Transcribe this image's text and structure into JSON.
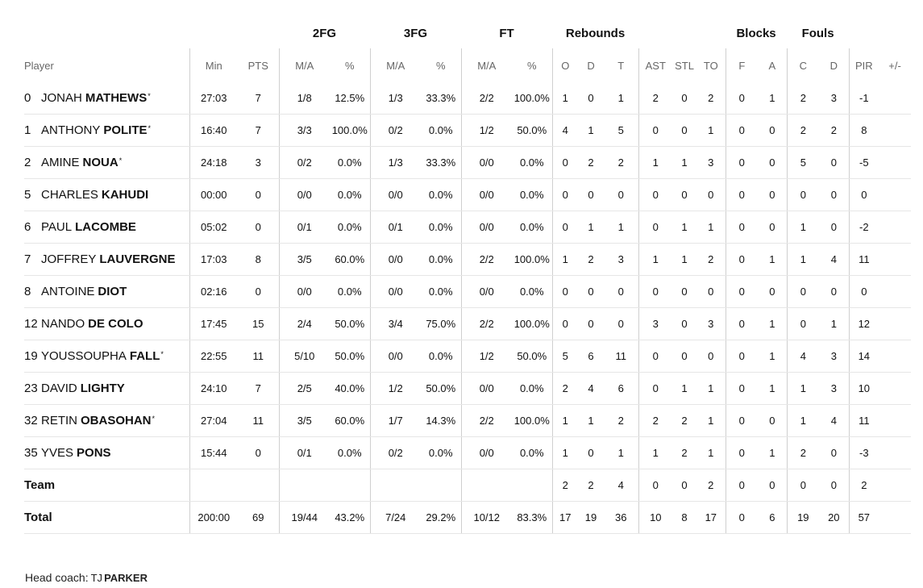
{
  "groups": {
    "fg2": "2FG",
    "fg3": "3FG",
    "ft": "FT",
    "reb": "Rebounds",
    "blk": "Blocks",
    "fouls": "Fouls"
  },
  "headers": {
    "player": "Player",
    "min": "Min",
    "pts": "PTS",
    "fg2_ma": "M/A",
    "fg2_pct": "%",
    "fg3_ma": "M/A",
    "fg3_pct": "%",
    "ft_ma": "M/A",
    "ft_pct": "%",
    "o": "O",
    "d": "D",
    "t": "T",
    "ast": "AST",
    "stl": "STL",
    "to": "TO",
    "f": "F",
    "a": "A",
    "c": "C",
    "fd": "D",
    "pir": "PIR",
    "pm": "+/-"
  },
  "players": [
    {
      "num": "0",
      "first": "JONAH",
      "last": "MATHEWS",
      "star": "*",
      "min": "27:03",
      "pts": "7",
      "fg2_ma": "1/8",
      "fg2_pct": "12.5%",
      "fg3_ma": "1/3",
      "fg3_pct": "33.3%",
      "ft_ma": "2/2",
      "ft_pct": "100.0%",
      "o": "1",
      "d": "0",
      "t": "1",
      "ast": "2",
      "stl": "0",
      "to": "2",
      "f": "0",
      "a": "1",
      "c": "2",
      "fd": "3",
      "pir": "-1"
    },
    {
      "num": "1",
      "first": "ANTHONY",
      "last": "POLITE",
      "star": "*",
      "min": "16:40",
      "pts": "7",
      "fg2_ma": "3/3",
      "fg2_pct": "100.0%",
      "fg3_ma": "0/2",
      "fg3_pct": "0.0%",
      "ft_ma": "1/2",
      "ft_pct": "50.0%",
      "o": "4",
      "d": "1",
      "t": "5",
      "ast": "0",
      "stl": "0",
      "to": "1",
      "f": "0",
      "a": "0",
      "c": "2",
      "fd": "2",
      "pir": "8"
    },
    {
      "num": "2",
      "first": "AMINE",
      "last": "NOUA",
      "star": "*",
      "min": "24:18",
      "pts": "3",
      "fg2_ma": "0/2",
      "fg2_pct": "0.0%",
      "fg3_ma": "1/3",
      "fg3_pct": "33.3%",
      "ft_ma": "0/0",
      "ft_pct": "0.0%",
      "o": "0",
      "d": "2",
      "t": "2",
      "ast": "1",
      "stl": "1",
      "to": "3",
      "f": "0",
      "a": "0",
      "c": "5",
      "fd": "0",
      "pir": "-5"
    },
    {
      "num": "5",
      "first": "CHARLES",
      "last": "KAHUDI",
      "star": "",
      "min": "00:00",
      "pts": "0",
      "fg2_ma": "0/0",
      "fg2_pct": "0.0%",
      "fg3_ma": "0/0",
      "fg3_pct": "0.0%",
      "ft_ma": "0/0",
      "ft_pct": "0.0%",
      "o": "0",
      "d": "0",
      "t": "0",
      "ast": "0",
      "stl": "0",
      "to": "0",
      "f": "0",
      "a": "0",
      "c": "0",
      "fd": "0",
      "pir": "0"
    },
    {
      "num": "6",
      "first": "PAUL",
      "last": "LACOMBE",
      "star": "",
      "min": "05:02",
      "pts": "0",
      "fg2_ma": "0/1",
      "fg2_pct": "0.0%",
      "fg3_ma": "0/1",
      "fg3_pct": "0.0%",
      "ft_ma": "0/0",
      "ft_pct": "0.0%",
      "o": "0",
      "d": "1",
      "t": "1",
      "ast": "0",
      "stl": "1",
      "to": "1",
      "f": "0",
      "a": "0",
      "c": "1",
      "fd": "0",
      "pir": "-2"
    },
    {
      "num": "7",
      "first": "JOFFREY",
      "last": "LAUVERGNE",
      "star": "",
      "min": "17:03",
      "pts": "8",
      "fg2_ma": "3/5",
      "fg2_pct": "60.0%",
      "fg3_ma": "0/0",
      "fg3_pct": "0.0%",
      "ft_ma": "2/2",
      "ft_pct": "100.0%",
      "o": "1",
      "d": "2",
      "t": "3",
      "ast": "1",
      "stl": "1",
      "to": "2",
      "f": "0",
      "a": "1",
      "c": "1",
      "fd": "4",
      "pir": "11"
    },
    {
      "num": "8",
      "first": "ANTOINE",
      "last": "DIOT",
      "star": "",
      "min": "02:16",
      "pts": "0",
      "fg2_ma": "0/0",
      "fg2_pct": "0.0%",
      "fg3_ma": "0/0",
      "fg3_pct": "0.0%",
      "ft_ma": "0/0",
      "ft_pct": "0.0%",
      "o": "0",
      "d": "0",
      "t": "0",
      "ast": "0",
      "stl": "0",
      "to": "0",
      "f": "0",
      "a": "0",
      "c": "0",
      "fd": "0",
      "pir": "0"
    },
    {
      "num": "12",
      "first": "NANDO",
      "last": "DE COLO",
      "star": "",
      "min": "17:45",
      "pts": "15",
      "fg2_ma": "2/4",
      "fg2_pct": "50.0%",
      "fg3_ma": "3/4",
      "fg3_pct": "75.0%",
      "ft_ma": "2/2",
      "ft_pct": "100.0%",
      "o": "0",
      "d": "0",
      "t": "0",
      "ast": "3",
      "stl": "0",
      "to": "3",
      "f": "0",
      "a": "1",
      "c": "0",
      "fd": "1",
      "pir": "12"
    },
    {
      "num": "19",
      "first": "YOUSSOUPHA",
      "last": "FALL",
      "star": "*",
      "min": "22:55",
      "pts": "11",
      "fg2_ma": "5/10",
      "fg2_pct": "50.0%",
      "fg3_ma": "0/0",
      "fg3_pct": "0.0%",
      "ft_ma": "1/2",
      "ft_pct": "50.0%",
      "o": "5",
      "d": "6",
      "t": "11",
      "ast": "0",
      "stl": "0",
      "to": "0",
      "f": "0",
      "a": "1",
      "c": "4",
      "fd": "3",
      "pir": "14"
    },
    {
      "num": "23",
      "first": "DAVID",
      "last": "LIGHTY",
      "star": "",
      "min": "24:10",
      "pts": "7",
      "fg2_ma": "2/5",
      "fg2_pct": "40.0%",
      "fg3_ma": "1/2",
      "fg3_pct": "50.0%",
      "ft_ma": "0/0",
      "ft_pct": "0.0%",
      "o": "2",
      "d": "4",
      "t": "6",
      "ast": "0",
      "stl": "1",
      "to": "1",
      "f": "0",
      "a": "1",
      "c": "1",
      "fd": "3",
      "pir": "10"
    },
    {
      "num": "32",
      "first": "RETIN",
      "last": "OBASOHAN",
      "star": "*",
      "min": "27:04",
      "pts": "11",
      "fg2_ma": "3/5",
      "fg2_pct": "60.0%",
      "fg3_ma": "1/7",
      "fg3_pct": "14.3%",
      "ft_ma": "2/2",
      "ft_pct": "100.0%",
      "o": "1",
      "d": "1",
      "t": "2",
      "ast": "2",
      "stl": "2",
      "to": "1",
      "f": "0",
      "a": "0",
      "c": "1",
      "fd": "4",
      "pir": "11"
    },
    {
      "num": "35",
      "first": "YVES",
      "last": "PONS",
      "star": "",
      "min": "15:44",
      "pts": "0",
      "fg2_ma": "0/1",
      "fg2_pct": "0.0%",
      "fg3_ma": "0/2",
      "fg3_pct": "0.0%",
      "ft_ma": "0/0",
      "ft_pct": "0.0%",
      "o": "1",
      "d": "0",
      "t": "1",
      "ast": "1",
      "stl": "2",
      "to": "1",
      "f": "0",
      "a": "1",
      "c": "2",
      "fd": "0",
      "pir": "-3"
    }
  ],
  "team": {
    "label": "Team",
    "o": "2",
    "d": "2",
    "t": "4",
    "ast": "0",
    "stl": "0",
    "to": "2",
    "f": "0",
    "a": "0",
    "c": "0",
    "fd": "0",
    "pir": "2"
  },
  "total": {
    "label": "Total",
    "min": "200:00",
    "pts": "69",
    "fg2_ma": "19/44",
    "fg2_pct": "43.2%",
    "fg3_ma": "7/24",
    "fg3_pct": "29.2%",
    "ft_ma": "10/12",
    "ft_pct": "83.3%",
    "o": "17",
    "d": "19",
    "t": "36",
    "ast": "10",
    "stl": "8",
    "to": "17",
    "f": "0",
    "a": "6",
    "c": "19",
    "fd": "20",
    "pir": "57"
  },
  "coach": {
    "label": "Head coach:",
    "first": "TJ",
    "last": "PARKER"
  }
}
